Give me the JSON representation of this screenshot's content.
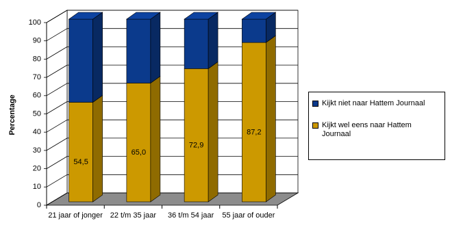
{
  "chart_data": {
    "type": "bar3d_stacked",
    "y_label": "Percentage",
    "categories": [
      "21 jaar of jonger",
      "22 t/m 35 jaar",
      "36 t/m 54 jaar",
      "55 jaar of ouder"
    ],
    "series": [
      {
        "name": "Kijkt wel eens naar Hattem Journaal",
        "color": "#cc9900",
        "values": [
          54.5,
          65.0,
          72.9,
          87.2
        ],
        "value_labels": [
          "54,5",
          "65,0",
          "72,9",
          "87,2"
        ]
      },
      {
        "name": "Kijkt niet naar Hattem Journaal",
        "color": "#0b3a8c",
        "values": [
          45.5,
          35.0,
          27.1,
          12.8
        ]
      }
    ],
    "ylim": [
      0,
      100
    ],
    "yticks": [
      0,
      10,
      20,
      30,
      40,
      50,
      60,
      70,
      80,
      90,
      100
    ],
    "grid": true,
    "legend": "right"
  }
}
